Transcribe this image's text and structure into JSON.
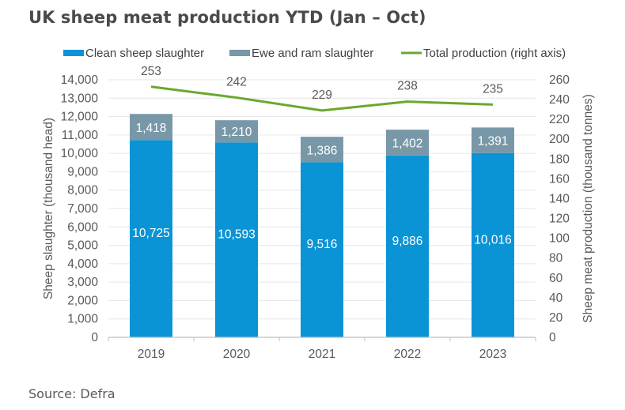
{
  "page": {
    "title": "UK sheep meat production YTD (Jan – Oct)",
    "source": "Source: Defra"
  },
  "chart_data": {
    "type": "bar",
    "stacked": true,
    "title": "UK sheep meat production YTD (Jan – Oct)",
    "categories": [
      "2019",
      "2020",
      "2021",
      "2022",
      "2023"
    ],
    "series": [
      {
        "name": "Clean sheep slaughter",
        "kind": "bar",
        "axis": "left",
        "color": "#0a94d6",
        "values": [
          10725,
          10593,
          9516,
          9886,
          10016
        ],
        "labels": [
          "10,725",
          "10,593",
          "9,516",
          "9,886",
          "10,016"
        ]
      },
      {
        "name": "Ewe and ram slaughter",
        "kind": "bar",
        "axis": "left",
        "color": "#7898a8",
        "values": [
          1418,
          1210,
          1386,
          1402,
          1391
        ],
        "labels": [
          "1,418",
          "1,210",
          "1,386",
          "1,402",
          "1,391"
        ]
      },
      {
        "name": "Total production (right axis)",
        "kind": "line",
        "axis": "right",
        "color": "#6aa82e",
        "values": [
          253,
          242,
          229,
          238,
          235
        ],
        "labels": [
          "253",
          "242",
          "229",
          "238",
          "235"
        ]
      }
    ],
    "ylabel": "Sheep slaughter (thousand head)",
    "y2label": "Sheep meat production (thousand tonnes)",
    "ylim": [
      0,
      14000
    ],
    "y2lim": [
      0,
      260
    ],
    "yticks": [
      "0",
      "1,000",
      "2,000",
      "3,000",
      "4,000",
      "5,000",
      "6,000",
      "7,000",
      "8,000",
      "9,000",
      "10,000",
      "11,000",
      "12,000",
      "13,000",
      "14,000"
    ],
    "y2ticks": [
      "0",
      "20",
      "40",
      "60",
      "80",
      "100",
      "120",
      "140",
      "160",
      "180",
      "200",
      "220",
      "240",
      "260"
    ],
    "grid": true,
    "legend": "top"
  }
}
